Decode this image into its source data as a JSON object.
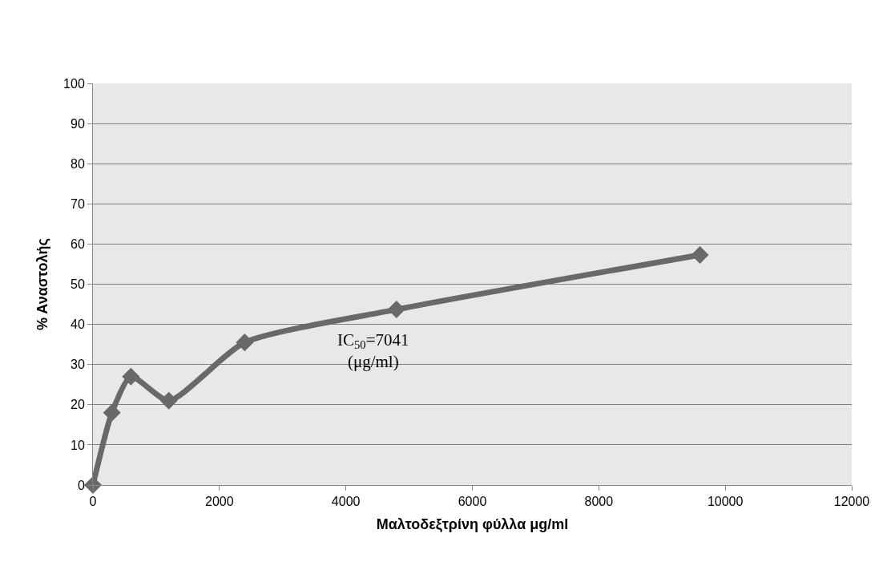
{
  "chart_data": {
    "type": "line",
    "xlabel": "Μαλτοδεξτρίνη φύλλα μg/ml",
    "ylabel": "% Αναστολής",
    "annotations": [
      "IC$_{50}$=7041\n(μg/ml)"
    ],
    "x": [
      0,
      300,
      600,
      1200,
      2400,
      4800,
      9600
    ],
    "series": [
      {
        "color": "#696969",
        "values": [
          0,
          18,
          27,
          21,
          35.5,
          43.7,
          57.3
        ]
      }
    ],
    "xlim": [
      0,
      12000
    ],
    "xticks": [
      0,
      2000,
      4000,
      6000,
      8000,
      10000,
      12000
    ],
    "ylim": [
      0,
      100
    ],
    "yticks": [
      0,
      10,
      20,
      30,
      40,
      50,
      60,
      70,
      80,
      90,
      100
    ],
    "grid": "y",
    "marker": "diamond",
    "line_style": "solid"
  }
}
